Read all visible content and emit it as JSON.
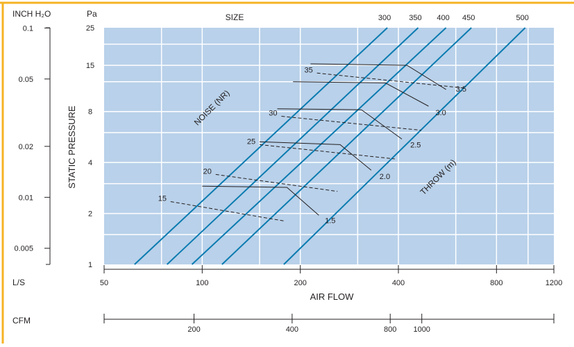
{
  "chart_data": {
    "type": "line",
    "title": "",
    "colors": {
      "plot_background": "#b9d1ea",
      "grid": "#ffffff",
      "series_line": "#0a7bb0",
      "annotation_line": "#231f20",
      "frame_accent": "#f5b324"
    },
    "grid": true,
    "x_axis": {
      "label": "AIR FLOW",
      "unit_label": "L/S",
      "scale": "log",
      "range": [
        50,
        1200
      ],
      "ticks": [
        50,
        100,
        200,
        400,
        800,
        1200
      ],
      "tick_labels": [
        "50",
        "100",
        "200",
        "400",
        "800",
        "1200"
      ]
    },
    "x2_axis": {
      "unit_label": "CFM",
      "ticks": [
        200,
        400,
        800,
        1000
      ],
      "tick_labels": [
        "200",
        "400",
        "800",
        "1000"
      ]
    },
    "y_axis": {
      "label": "STATIC PRESSURE",
      "unit_label": "Pa",
      "scale": "log",
      "range": [
        1,
        25
      ],
      "ticks": [
        1,
        2,
        4,
        8,
        15,
        25
      ],
      "tick_labels": [
        "1",
        "2",
        "4",
        "8",
        "15",
        "25"
      ]
    },
    "y2_axis": {
      "unit_label": "INCH H₂O",
      "ticks": [
        0.005,
        0.01,
        0.02,
        0.05,
        0.1
      ],
      "tick_labels": [
        "0.005",
        "0.01",
        "0.02",
        "0.05",
        "0.1"
      ]
    },
    "size_header": "SIZE",
    "size_labels": [
      "300",
      "350",
      "400",
      "450",
      "500"
    ],
    "series": [
      {
        "name": "300",
        "points": [
          [
            62,
            1
          ],
          [
            370,
            25
          ]
        ]
      },
      {
        "name": "350",
        "points": [
          [
            78,
            1
          ],
          [
            460,
            25
          ]
        ]
      },
      {
        "name": "400",
        "points": [
          [
            93,
            1
          ],
          [
            560,
            25
          ]
        ]
      },
      {
        "name": "450",
        "points": [
          [
            115,
            1
          ],
          [
            670,
            25
          ]
        ]
      },
      {
        "name": "500",
        "points": [
          [
            178,
            1
          ],
          [
            980,
            25
          ]
        ]
      }
    ],
    "noise_label": "NOISE (NR)",
    "noise_curves": [
      {
        "label": "15",
        "points": [
          [
            80,
            2.35
          ],
          [
            180,
            1.8
          ]
        ]
      },
      {
        "label": "20",
        "points": [
          [
            110,
            3.4
          ],
          [
            260,
            2.7
          ]
        ]
      },
      {
        "label": "25",
        "points": [
          [
            150,
            5.1
          ],
          [
            390,
            4.2
          ]
        ]
      },
      {
        "label": "30",
        "points": [
          [
            175,
            7.5
          ],
          [
            470,
            6.2
          ]
        ]
      },
      {
        "label": "35",
        "points": [
          [
            225,
            13.5
          ],
          [
            640,
            11.0
          ]
        ]
      }
    ],
    "throw_label": "THROW (m)",
    "throw_curves": [
      {
        "label": "1.5",
        "points": [
          [
            100,
            2.9
          ],
          [
            182,
            2.85
          ],
          [
            228,
            1.95
          ]
        ]
      },
      {
        "label": "2.0",
        "points": [
          [
            150,
            5.3
          ],
          [
            265,
            5.1
          ],
          [
            330,
            3.6
          ]
        ]
      },
      {
        "label": "2.5",
        "points": [
          [
            170,
            8.3
          ],
          [
            308,
            8.2
          ]
        ]
      },
      {
        "label": "3.0",
        "points": [
          [
            190,
            12.0
          ],
          [
            365,
            11.8
          ],
          [
            495,
            8.6
          ]
        ]
      },
      {
        "label": "3.5",
        "points": [
          [
            215,
            15.3
          ],
          [
            425,
            15.0
          ],
          [
            560,
            10.8
          ]
        ]
      }
    ],
    "throw_extra_segment": [
      [
        308,
        8.2
      ],
      [
        410,
        5.5
      ]
    ],
    "throw_label_points": {
      "1.5": [
        238,
        1.75
      ],
      "2.0": [
        350,
        3.2
      ],
      "2.5": [
        435,
        4.9
      ],
      "3.0": [
        520,
        7.6
      ],
      "3.5": [
        600,
        10.5
      ]
    }
  }
}
